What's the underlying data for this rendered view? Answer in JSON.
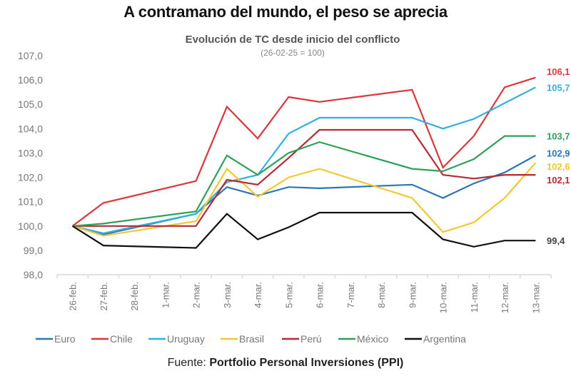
{
  "chart_data": {
    "type": "line",
    "title": "A contramano del mundo, el peso se aprecia",
    "subtitle": "Evolución de TC desde inicio del conflicto",
    "note": "(26-02-25 = 100)",
    "xlabel": "",
    "ylabel": "",
    "ylim": [
      98.0,
      107.0
    ],
    "yticks": [
      "98,0",
      "99,0",
      "100,0",
      "101,0",
      "102,0",
      "103,0",
      "104,0",
      "105,0",
      "106,0",
      "107,0"
    ],
    "grid": false,
    "legend_position": "bottom",
    "categories": [
      "26-feb.",
      "27-feb.",
      "28-feb.",
      "1-mar.",
      "2-mar.",
      "3-mar.",
      "4-mar.",
      "5-mar.",
      "6-mar.",
      "7-mar.",
      "8-mar.",
      "9-mar.",
      "10-mar.",
      "11-mar.",
      "12-mar.",
      "13-mar."
    ],
    "series": [
      {
        "name": "Euro",
        "color": "#2e75b6",
        "end_label": "102,9",
        "values": [
          100.0,
          99.65,
          null,
          null,
          100.5,
          101.6,
          101.25,
          101.6,
          101.55,
          null,
          null,
          101.7,
          101.15,
          101.75,
          102.2,
          102.9
        ]
      },
      {
        "name": "Chile",
        "color": "#d9373c",
        "end_label": "106,1",
        "values": [
          100.0,
          100.95,
          null,
          null,
          101.85,
          104.9,
          103.6,
          105.3,
          105.1,
          null,
          null,
          105.6,
          102.4,
          103.7,
          105.7,
          106.1
        ]
      },
      {
        "name": "Uruguay",
        "color": "#33b0e0",
        "end_label": "105,7",
        "values": [
          100.0,
          99.7,
          null,
          null,
          100.5,
          101.8,
          102.1,
          103.8,
          104.45,
          null,
          null,
          104.45,
          104.0,
          104.4,
          105.05,
          105.7
        ]
      },
      {
        "name": "Brasil",
        "color": "#f2c830",
        "end_label": "102,6",
        "values": [
          100.0,
          99.6,
          null,
          null,
          100.2,
          102.35,
          101.2,
          102.0,
          102.35,
          null,
          null,
          101.15,
          99.75,
          100.15,
          101.15,
          102.6
        ]
      },
      {
        "name": "Perú",
        "color": "#b52a35",
        "end_label": "102,1",
        "values": [
          100.0,
          100.0,
          null,
          null,
          100.0,
          101.9,
          101.7,
          102.8,
          103.95,
          null,
          null,
          103.95,
          102.1,
          101.95,
          102.1,
          102.1
        ]
      },
      {
        "name": "México",
        "color": "#2ea05a",
        "end_label": "103,7",
        "values": [
          100.0,
          100.1,
          null,
          null,
          100.6,
          102.9,
          102.1,
          103.0,
          103.45,
          null,
          null,
          102.35,
          102.25,
          102.75,
          103.7,
          103.7
        ]
      },
      {
        "name": "Argentina",
        "color": "#111111",
        "end_label": "99,4",
        "values": [
          100.0,
          99.2,
          null,
          null,
          99.1,
          100.5,
          99.45,
          99.95,
          100.55,
          null,
          null,
          100.55,
          99.45,
          99.15,
          99.4,
          99.4
        ]
      }
    ],
    "end_label_colors": {
      "Euro": "#2e75b6",
      "Chile": "#d9373c",
      "Uruguay": "#33b0e0",
      "Brasil": "#f2c830",
      "Perú": "#b52a35",
      "México": "#2ea05a",
      "Argentina": "#444444"
    }
  },
  "source": {
    "prefix": "Fuente: ",
    "name": "Portfolio Personal Inversiones (PPI)"
  }
}
